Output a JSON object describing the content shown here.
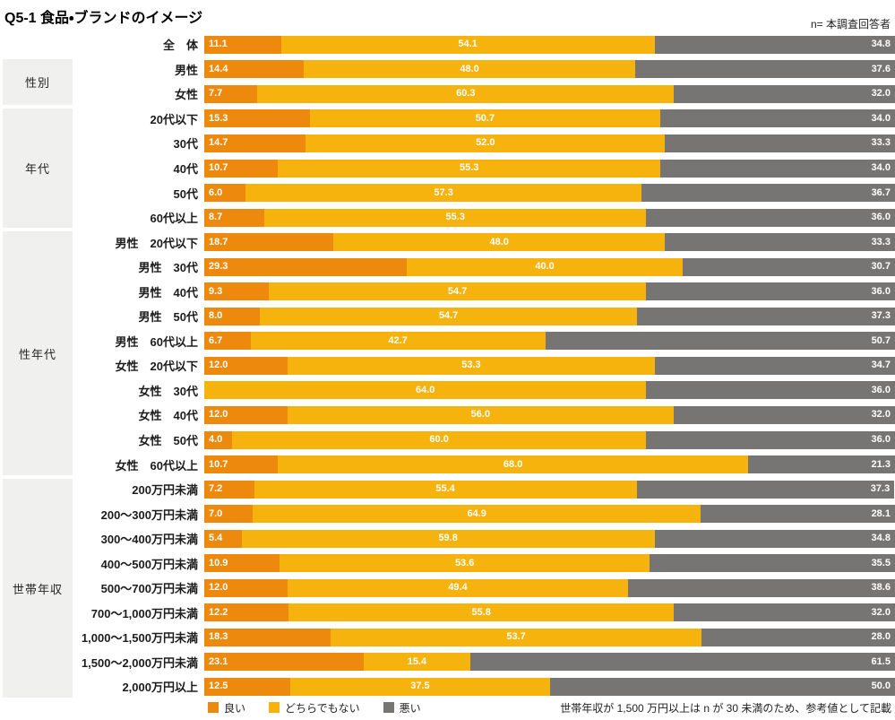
{
  "title": "Q5-1 食品・ブランドのイメージ",
  "top_note": "n= 本調査回答者",
  "footnote": "世帯年収が 1,500 万円以上は n が 30 未満のため、参考値として記載",
  "colors": {
    "good": "#ED8A0E",
    "neutral": "#F6B20D",
    "bad": "#777573",
    "group_box_bg": "#f0f0ee",
    "value_text": "#ffffff"
  },
  "legend": [
    {
      "label": "良い",
      "color": "#ED8A0E"
    },
    {
      "label": "どちらでもない",
      "color": "#F6B20D"
    },
    {
      "label": "悪い",
      "color": "#777573"
    }
  ],
  "groups": [
    {
      "label": "性別",
      "start": 1,
      "end": 2
    },
    {
      "label": "年代",
      "start": 3,
      "end": 7
    },
    {
      "label": "性年代",
      "start": 8,
      "end": 17
    },
    {
      "label": "世帯年収",
      "start": 18,
      "end": 26
    }
  ],
  "chart_data": {
    "type": "bar",
    "stacked": true,
    "orientation": "horizontal",
    "unit": "%",
    "xlim": [
      0,
      100
    ],
    "title": "Q5-1 食品・ブランドのイメージ",
    "legend_position": "bottom",
    "categories": [
      "全　体",
      "男性",
      "女性",
      "20代以下",
      "30代",
      "40代",
      "50代",
      "60代以上",
      "男性　20代以下",
      "男性　30代",
      "男性　40代",
      "男性　50代",
      "男性　60代以上",
      "女性　20代以下",
      "女性　30代",
      "女性　40代",
      "女性　50代",
      "女性　60代以上",
      "200万円未満",
      "200〜300万円未満",
      "300〜400万円未満",
      "400〜500万円未満",
      "500〜700万円未満",
      "700〜1,000万円未満",
      "1,000〜1,500万円未満",
      "1,500〜2,000万円未満",
      "2,000万円以上"
    ],
    "series": [
      {
        "name": "良い",
        "color": "#ED8A0E",
        "values": [
          11.1,
          14.4,
          7.7,
          15.3,
          14.7,
          10.7,
          6.0,
          8.7,
          18.7,
          29.3,
          9.3,
          8.0,
          6.7,
          12.0,
          0.0,
          12.0,
          4.0,
          10.7,
          7.2,
          7.0,
          5.4,
          10.9,
          12.0,
          12.2,
          18.3,
          23.1,
          12.5
        ]
      },
      {
        "name": "どちらでもない",
        "color": "#F6B20D",
        "values": [
          54.1,
          48.0,
          60.3,
          50.7,
          52.0,
          55.3,
          57.3,
          55.3,
          48.0,
          40.0,
          54.7,
          54.7,
          42.7,
          53.3,
          64.0,
          56.0,
          60.0,
          68.0,
          55.4,
          64.9,
          59.8,
          53.6,
          49.4,
          55.8,
          53.7,
          15.4,
          37.5
        ]
      },
      {
        "name": "悪い",
        "color": "#777573",
        "values": [
          34.8,
          37.6,
          32.0,
          34.0,
          33.3,
          34.0,
          36.7,
          36.0,
          33.3,
          30.7,
          36.0,
          37.3,
          50.7,
          34.7,
          36.0,
          32.0,
          36.0,
          21.3,
          37.3,
          28.1,
          34.8,
          35.5,
          38.6,
          32.0,
          28.0,
          61.5,
          50.0
        ]
      }
    ]
  }
}
